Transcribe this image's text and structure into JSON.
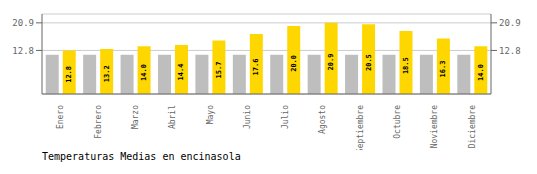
{
  "chart_data": {
    "type": "bar",
    "title": "Temperaturas Medias en encinasola",
    "categories": [
      "Enero",
      "Febrero",
      "Marzo",
      "Abril",
      "Mayo",
      "Junio",
      "Julio",
      "Agosto",
      "Septiembre",
      "Octubre",
      "Noviembre",
      "Diciembre"
    ],
    "series": [
      {
        "color": "#BEBEBE",
        "values": [
          11.5,
          11.5,
          11.5,
          11.5,
          11.5,
          11.5,
          11.5,
          11.5,
          11.5,
          11.5,
          11.5,
          11.5
        ]
      },
      {
        "color": "#FFD700",
        "values": [
          12.8,
          13.2,
          14.0,
          14.4,
          15.7,
          17.6,
          20.0,
          20.9,
          20.5,
          18.5,
          16.3,
          14.0
        ],
        "value_labels": [
          "12.8",
          "13.2",
          "14.0",
          "14.4",
          "15.7",
          "17.6",
          "20.0",
          "20.9",
          "20.5",
          "18.5",
          "16.3",
          "14.0"
        ],
        "data_labels": true
      }
    ],
    "ylim": [
      0,
      23.5
    ],
    "yticks": [
      12.8,
      20.9
    ],
    "y2lim": [
      0,
      23.5
    ],
    "y2ticks": [
      12.8,
      20.9
    ],
    "grid": true
  }
}
